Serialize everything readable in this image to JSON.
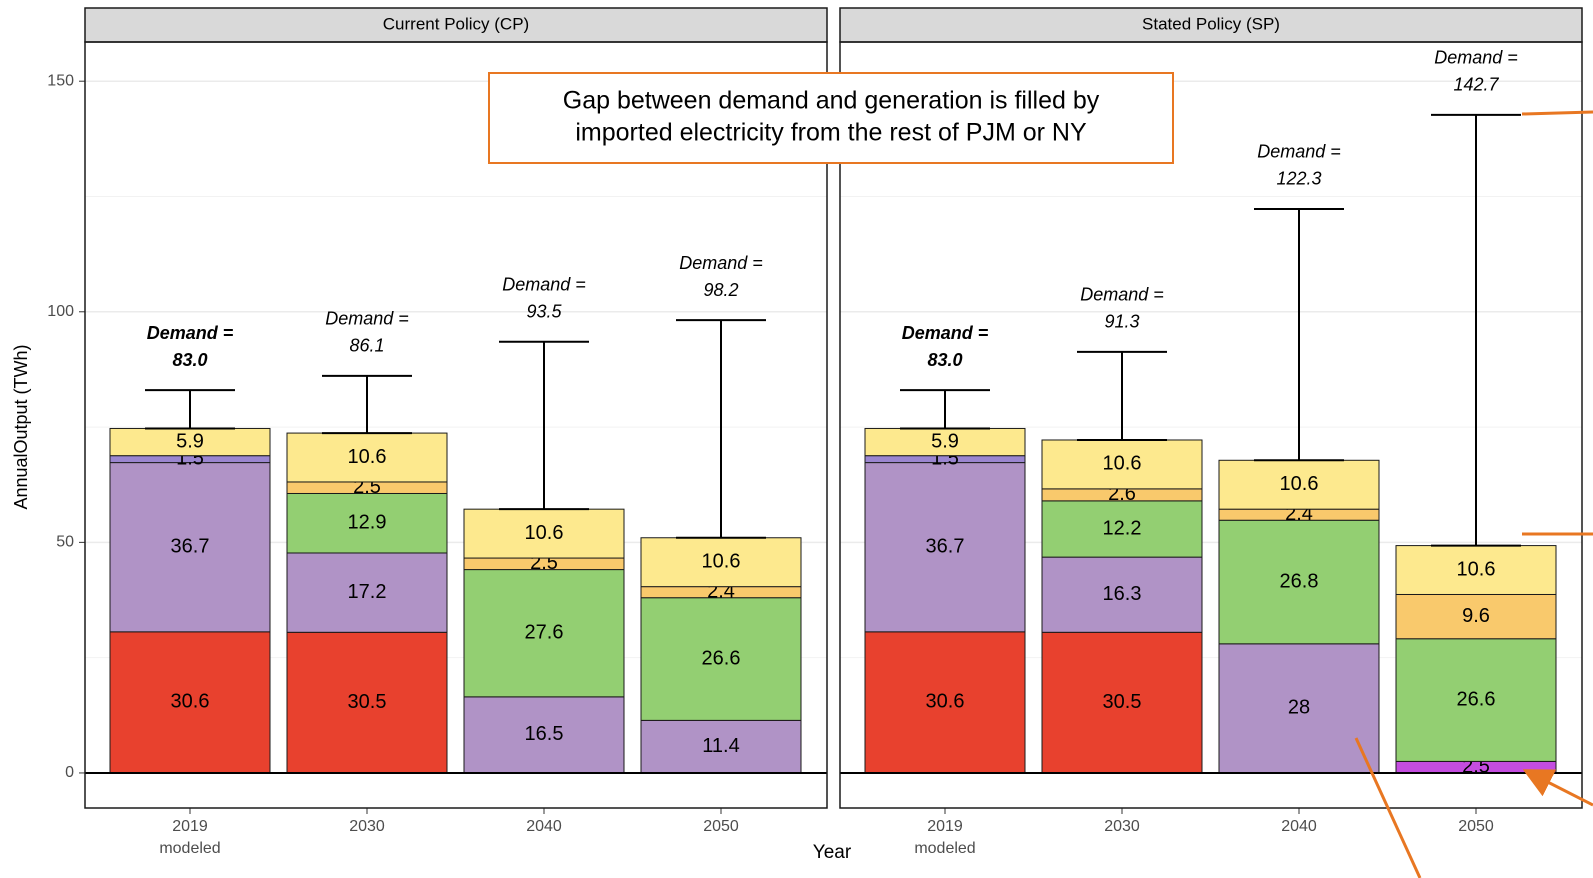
{
  "y_label": "AnnualOutput (TWh)",
  "x_label": "Year",
  "annotation": [
    "Gap between demand and generation is filled by",
    "imported electricity from the rest of PJM or NY"
  ],
  "chart_data": [
    {
      "type": "bar",
      "stacked": true,
      "title": "Current Policy (CP)",
      "categories": [
        "2019",
        "2030",
        "2040",
        "2050"
      ],
      "first_category_note": "modeled",
      "series": [
        {
          "color": "#e8412e",
          "values": [
            30.6,
            30.5,
            null,
            null
          ]
        },
        {
          "color": "#c44de0",
          "values": [
            null,
            null,
            null,
            null
          ]
        },
        {
          "color": "#b093c6",
          "values": [
            36.7,
            17.2,
            16.5,
            11.4
          ]
        },
        {
          "color": "#9b86d0",
          "values": [
            1.5,
            null,
            null,
            null
          ]
        },
        {
          "color": "#93cf72",
          "values": [
            null,
            12.9,
            27.6,
            26.6
          ]
        },
        {
          "color": "#f9c96c",
          "values": [
            null,
            2.5,
            2.5,
            2.4
          ]
        },
        {
          "color": "#fde98e",
          "values": [
            5.9,
            10.6,
            10.6,
            10.6
          ]
        }
      ],
      "demand_label": "Demand =",
      "demand": [
        83.0,
        86.1,
        93.5,
        98.2
      ],
      "demand_labels": [
        "83.0",
        "86.1",
        "93.5",
        "98.2"
      ],
      "ylim": [
        -7.6,
        158.5
      ],
      "yticks": [
        0,
        50,
        100,
        150
      ],
      "minor_yticks": [
        25,
        75,
        125
      ],
      "grid": true
    },
    {
      "type": "bar",
      "stacked": true,
      "title": "Stated Policy (SP)",
      "categories": [
        "2019",
        "2030",
        "2040",
        "2050"
      ],
      "first_category_note": "modeled",
      "series": [
        {
          "color": "#e8412e",
          "values": [
            30.6,
            30.5,
            null,
            null
          ]
        },
        {
          "color": "#c44de0",
          "values": [
            null,
            null,
            null,
            2.5
          ]
        },
        {
          "color": "#b093c6",
          "values": [
            36.7,
            16.3,
            28,
            null
          ]
        },
        {
          "color": "#9b86d0",
          "values": [
            1.5,
            null,
            null,
            null
          ]
        },
        {
          "color": "#93cf72",
          "values": [
            null,
            12.2,
            26.8,
            26.6
          ]
        },
        {
          "color": "#f9c96c",
          "values": [
            null,
            2.6,
            2.4,
            9.6
          ]
        },
        {
          "color": "#fde98e",
          "values": [
            5.9,
            10.6,
            10.6,
            10.6
          ]
        }
      ],
      "demand_label": "Demand =",
      "demand": [
        83.0,
        91.3,
        122.3,
        142.7
      ],
      "demand_labels": [
        "83.0",
        "91.3",
        "122.3",
        "142.7"
      ],
      "ylim": [
        -7.6,
        158.5
      ],
      "yticks": [
        0,
        50,
        100,
        150
      ],
      "minor_yticks": [
        25,
        75,
        125
      ],
      "grid": true
    }
  ]
}
